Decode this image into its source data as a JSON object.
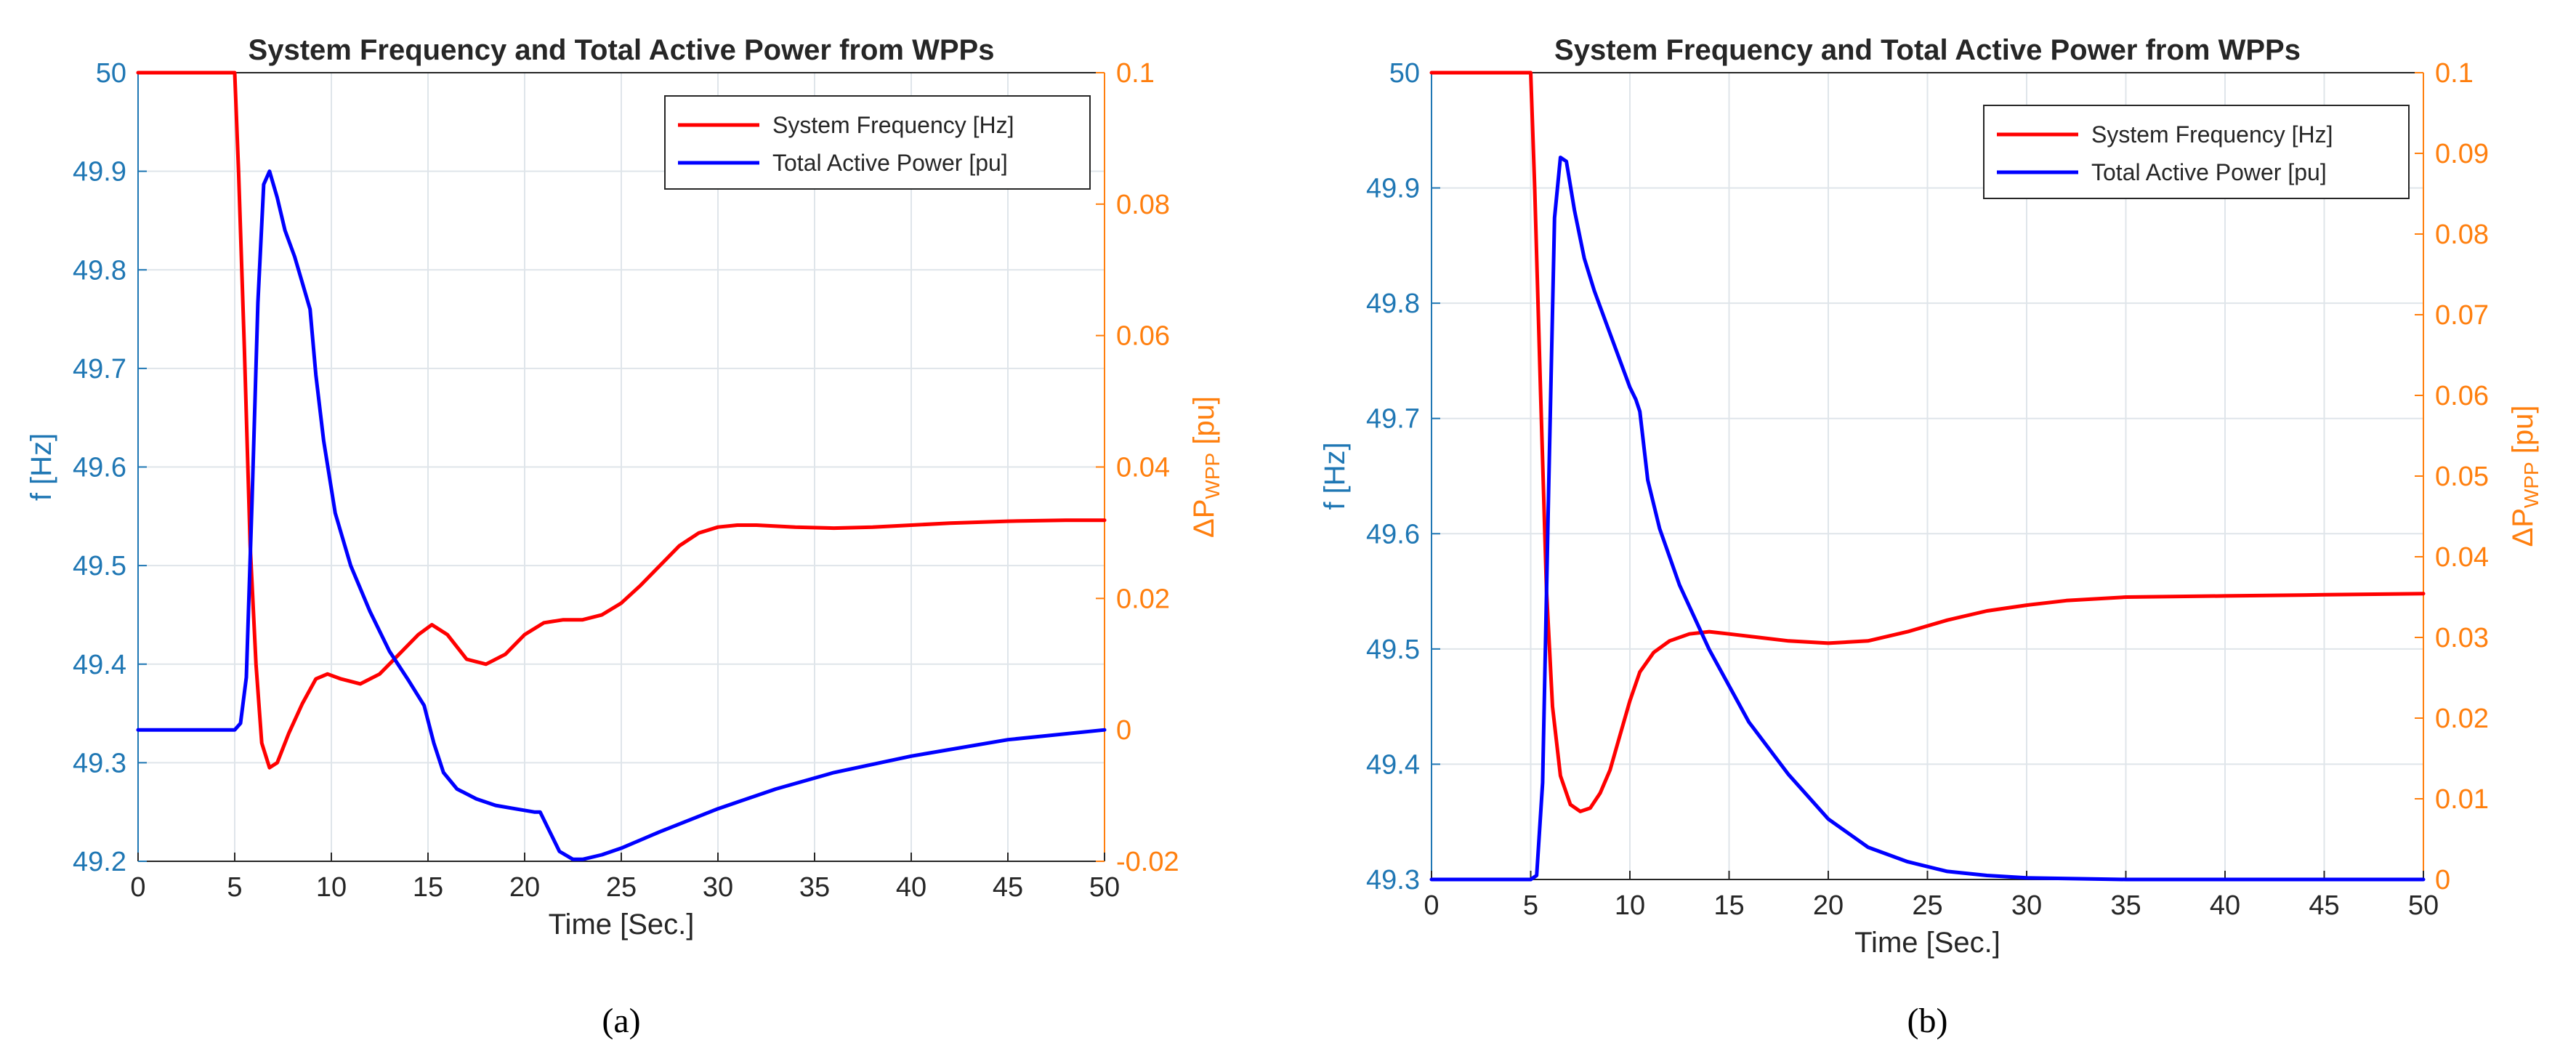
{
  "colors": {
    "frequency_line": "#ff0000",
    "power_line": "#0000ff",
    "left_axis": "#1f77b4",
    "right_axis": "#ff7f0e",
    "grid": "#dfe5ea",
    "text": "#262626"
  },
  "chart_data": [
    {
      "type": "line",
      "panel_label": "(a)",
      "title": "System Frequency and Total Active Power from WPPs",
      "xlabel": "Time [Sec.]",
      "ylabel_left": "f [Hz]",
      "ylabel_right_main": "ΔP",
      "ylabel_right_sub": "WPP",
      "ylabel_right_unit": "[pu]",
      "xlim": [
        0,
        50
      ],
      "ylim_left": [
        49.2,
        50
      ],
      "ylim_right": [
        -0.02,
        0.1
      ],
      "xticks": [
        "0",
        "5",
        "10",
        "15",
        "20",
        "25",
        "30",
        "35",
        "40",
        "45",
        "50"
      ],
      "yticks_left": [
        "49.2",
        "49.3",
        "49.4",
        "49.5",
        "49.6",
        "49.7",
        "49.8",
        "49.9",
        "50"
      ],
      "yticks_right": [
        "-0.02",
        "0",
        "0.02",
        "0.04",
        "0.06",
        "0.08",
        "0.1"
      ],
      "legend_position": "top-right",
      "grid": true,
      "series": [
        {
          "name": "System Frequency [Hz]",
          "axis": "left",
          "x": [
            0,
            5,
            5.2,
            5.5,
            5.8,
            6.1,
            6.4,
            6.8,
            7.2,
            7.8,
            8.5,
            9.2,
            9.8,
            10.5,
            11.5,
            12.5,
            13.5,
            14.5,
            15.2,
            16,
            17,
            18,
            19,
            20,
            21,
            22,
            23,
            24,
            25,
            26,
            27,
            28,
            29,
            30,
            31,
            32,
            34,
            36,
            38,
            40,
            42,
            45,
            48,
            50
          ],
          "y": [
            50,
            50,
            49.9,
            49.72,
            49.52,
            49.4,
            49.32,
            49.295,
            49.3,
            49.33,
            49.36,
            49.385,
            49.39,
            49.385,
            49.38,
            49.39,
            49.41,
            49.43,
            49.44,
            49.43,
            49.405,
            49.4,
            49.41,
            49.43,
            49.442,
            49.445,
            49.445,
            49.45,
            49.462,
            49.48,
            49.5,
            49.52,
            49.533,
            49.539,
            49.541,
            49.541,
            49.539,
            49.538,
            49.539,
            49.541,
            49.543,
            49.545,
            49.546,
            49.546
          ]
        },
        {
          "name": "Total Active Power [pu]",
          "axis": "right",
          "x": [
            0,
            5,
            5.3,
            5.6,
            5.9,
            6.2,
            6.5,
            6.8,
            7.2,
            7.6,
            8.1,
            8.6,
            8.9,
            9.2,
            9.6,
            10.2,
            11,
            12,
            13,
            14,
            14.8,
            15.3,
            15.8,
            16.5,
            17.5,
            18.5,
            19.5,
            20.5,
            20.8,
            21.3,
            21.8,
            22.5,
            23,
            24,
            25,
            27,
            30,
            33,
            36,
            40,
            45,
            50
          ],
          "y": [
            0,
            0,
            0.001,
            0.008,
            0.035,
            0.065,
            0.083,
            0.085,
            0.081,
            0.076,
            0.072,
            0.067,
            0.064,
            0.054,
            0.044,
            0.033,
            0.025,
            0.018,
            0.012,
            0.0075,
            0.0037,
            -0.002,
            -0.0065,
            -0.009,
            -0.0105,
            -0.0115,
            -0.012,
            -0.0125,
            -0.0125,
            -0.0155,
            -0.0185,
            -0.0197,
            -0.0197,
            -0.019,
            -0.018,
            -0.0155,
            -0.012,
            -0.009,
            -0.0065,
            -0.004,
            -0.0015,
            0
          ]
        }
      ]
    },
    {
      "type": "line",
      "panel_label": "(b)",
      "title": "System Frequency and Total Active Power from WPPs",
      "xlabel": "Time [Sec.]",
      "ylabel_left": "f [Hz]",
      "ylabel_right_main": "ΔP",
      "ylabel_right_sub": "WPP",
      "ylabel_right_unit": "[pu]",
      "xlim": [
        0,
        50
      ],
      "ylim_left": [
        49.3,
        50
      ],
      "ylim_right": [
        0,
        0.1
      ],
      "xticks": [
        "0",
        "5",
        "10",
        "15",
        "20",
        "25",
        "30",
        "35",
        "40",
        "45",
        "50"
      ],
      "yticks_left": [
        "49.3",
        "49.4",
        "49.5",
        "49.6",
        "49.7",
        "49.8",
        "49.9",
        "50"
      ],
      "yticks_right": [
        "0",
        "0.01",
        "0.02",
        "0.03",
        "0.04",
        "0.05",
        "0.06",
        "0.07",
        "0.08",
        "0.09",
        "0.1"
      ],
      "legend_position": "top-right",
      "grid": true,
      "series": [
        {
          "name": "System Frequency [Hz]",
          "axis": "left",
          "x": [
            0,
            5,
            5.2,
            5.5,
            5.8,
            6.1,
            6.5,
            7,
            7.5,
            8,
            8.5,
            9,
            9.5,
            10,
            10.5,
            11.2,
            12,
            13,
            14,
            15,
            16.5,
            18,
            20,
            22,
            24,
            26,
            28,
            30,
            32,
            35,
            40,
            45,
            50
          ],
          "y": [
            50,
            50,
            49.9,
            49.72,
            49.55,
            49.45,
            49.39,
            49.365,
            49.359,
            49.362,
            49.375,
            49.395,
            49.425,
            49.455,
            49.48,
            49.497,
            49.507,
            49.513,
            49.515,
            49.513,
            49.51,
            49.507,
            49.505,
            49.507,
            49.515,
            49.525,
            49.533,
            49.538,
            49.542,
            49.545,
            49.546,
            49.547,
            49.548
          ]
        },
        {
          "name": "Total Active Power [pu]",
          "axis": "right",
          "x": [
            0,
            5,
            5.3,
            5.6,
            5.9,
            6.2,
            6.5,
            6.8,
            7.2,
            7.7,
            8.2,
            8.8,
            9.4,
            10,
            10.3,
            10.5,
            10.9,
            11.5,
            12.5,
            14,
            16,
            18,
            20,
            22,
            24,
            26,
            28,
            30,
            35,
            40,
            50
          ],
          "y": [
            0,
            0,
            0.0005,
            0.012,
            0.048,
            0.082,
            0.0895,
            0.089,
            0.083,
            0.077,
            0.073,
            0.069,
            0.065,
            0.061,
            0.0595,
            0.058,
            0.0495,
            0.0435,
            0.0365,
            0.0285,
            0.0195,
            0.013,
            0.0075,
            0.004,
            0.0022,
            0.001,
            0.0005,
            0.0002,
            0,
            0,
            0
          ]
        }
      ]
    }
  ]
}
